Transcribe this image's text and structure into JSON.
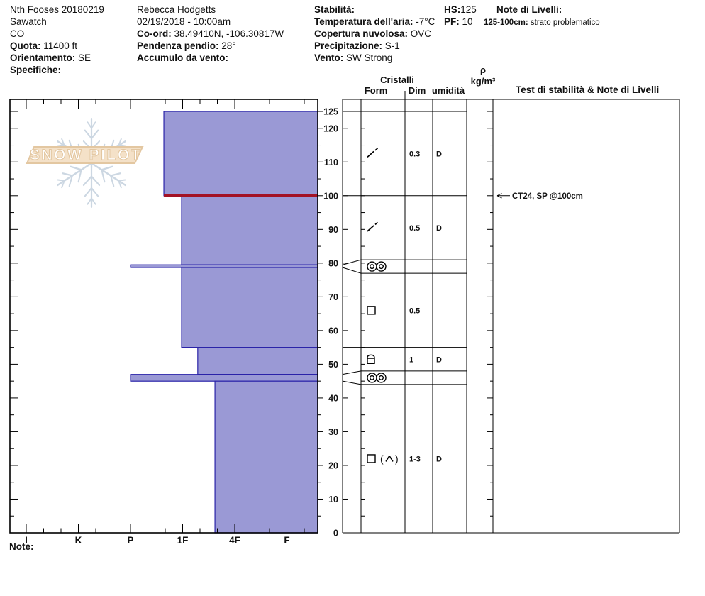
{
  "header": {
    "site": {
      "name": "Nth Fooses 20180219",
      "range": "Sawatch",
      "state": "CO",
      "elevation_label": "Quota:",
      "elevation": "11400 ft",
      "aspect_label": "Orientamento:",
      "aspect": "SE",
      "specifics_label": "Specifiche:"
    },
    "observer": {
      "name": "Rebecca Hodgetts",
      "datetime": "02/19/2018 - 10:00am",
      "coord_label": "Co-ord:",
      "coord": "38.49410N, -106.30817W",
      "slope_label": "Pendenza pendio:",
      "slope": "28°",
      "wind_loading_label": "Accumulo da vento:"
    },
    "weather": {
      "stability_label": "Stabilità:",
      "air_temp_label": "Temperatura dell'aria:",
      "air_temp": "-7°C",
      "sky_label": "Copertura nuvolosa:",
      "sky": "OVC",
      "precip_label": "Precipitazione:",
      "precip": "S-1",
      "wind_label": "Vento:",
      "wind": "SW Strong"
    },
    "totals": {
      "hs_label": "HS:",
      "hs": "125",
      "pf_label": "PF:",
      "pf": "10"
    },
    "layer_notes": {
      "title": "Note di Livelli:",
      "entry_range": "125-100cm:",
      "entry_text": "strato problematico"
    }
  },
  "logo": {
    "text": "SNOW PILOT"
  },
  "table": {
    "headers": {
      "cristalli": "Cristalli",
      "form": "Form",
      "dim": "Dim",
      "wetness": "umidità",
      "density_symbol": "ρ",
      "density_units": "kg/m³",
      "tests": "Test di stabilità & Note di Livelli"
    }
  },
  "footer": {
    "note_label": "Note:"
  },
  "chart_data": {
    "type": "snow-profile",
    "hardness_axis": {
      "categories": [
        "I",
        "K",
        "P",
        "1F",
        "4F",
        "F"
      ]
    },
    "depth_axis": {
      "unit": "cm",
      "min": 0,
      "max": 125,
      "labels": [
        125,
        120,
        110,
        100,
        90,
        80,
        70,
        60,
        50,
        40,
        30,
        20,
        10,
        0
      ]
    },
    "hs_cm": 125,
    "layers": [
      {
        "top_cm": 125,
        "bottom_cm": 100,
        "hardness": "1F+",
        "hardness_pos": 2.64
      },
      {
        "top_cm": 100,
        "bottom_cm": 79.5,
        "hardness": "1F",
        "hardness_pos": 2.98
      },
      {
        "top_cm": 79.5,
        "bottom_cm": 78.7,
        "hardness": "P",
        "hardness_pos": 2.0
      },
      {
        "top_cm": 78.7,
        "bottom_cm": 55,
        "hardness": "1F",
        "hardness_pos": 2.98
      },
      {
        "top_cm": 55,
        "bottom_cm": 47,
        "hardness": "1F-",
        "hardness_pos": 3.29
      },
      {
        "top_cm": 47,
        "bottom_cm": 45,
        "hardness": "P",
        "hardness_pos": 2.0
      },
      {
        "top_cm": 45,
        "bottom_cm": 0,
        "hardness": "4F+",
        "hardness_pos": 3.62
      }
    ],
    "problem_layer_cm": 100,
    "grain_rows": [
      {
        "top_cm": 125,
        "bottom_cm": 100,
        "form": "decomposing-fragments",
        "dim": "0.3",
        "wetness": "D"
      },
      {
        "top_cm": 100,
        "bottom_cm": 81,
        "form": "decomposing-fragments",
        "dim": "0.5",
        "wetness": "D"
      },
      {
        "top_cm": 81,
        "bottom_cm": 77,
        "form": "rounded-polycrystals",
        "dim": "",
        "wetness": "",
        "expanded_from_layer": 2
      },
      {
        "top_cm": 77,
        "bottom_cm": 55,
        "form": "facets",
        "dim": "0.5",
        "wetness": ""
      },
      {
        "top_cm": 55,
        "bottom_cm": 48,
        "form": "rounding-facets",
        "dim": "1",
        "wetness": "D"
      },
      {
        "top_cm": 48,
        "bottom_cm": 44,
        "form": "rounded-polycrystals",
        "dim": "",
        "wetness": "",
        "expanded_from_layer": 5
      },
      {
        "top_cm": 44,
        "bottom_cm": 0,
        "form": "facets-depth-hoar",
        "dim": "1-3",
        "wetness": "D"
      }
    ],
    "stability_tests": [
      {
        "label": "CT24, SP @100cm",
        "depth_cm": 100
      }
    ],
    "colors": {
      "layer_fill": "#9a99d5",
      "layer_border": "#2a23a8",
      "problem_line": "#a31225",
      "logo_flake": "#ccd7e2",
      "logo_band_fill": "#f4e1c8",
      "logo_band_border": "#e3c7a1",
      "logo_letters": "#ffffff"
    }
  }
}
